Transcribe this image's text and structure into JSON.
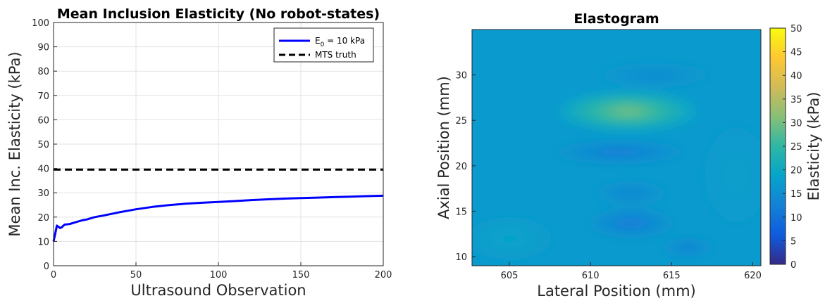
{
  "chart_data": [
    {
      "type": "line",
      "title": "Mean Inclusion Elasticity (No robot-states)",
      "xlabel": "Ultrasound Observation",
      "ylabel": "Mean Inc. Elasticity (kPa)",
      "xlim": [
        0,
        200
      ],
      "ylim": [
        0,
        100
      ],
      "xticks": [
        "0",
        "50",
        "100",
        "150",
        "200"
      ],
      "yticks": [
        "0",
        "10",
        "20",
        "30",
        "40",
        "50",
        "60",
        "70",
        "80",
        "90",
        "100"
      ],
      "grid": true,
      "legend_position": "top-right",
      "series": [
        {
          "name_main": "E",
          "name_sub": "0",
          "name_rest": " = 10 kPa",
          "color": "#0000ff",
          "style": "solid",
          "x": [
            0,
            1,
            2,
            3,
            4,
            5,
            6,
            7,
            8,
            10,
            12,
            15,
            18,
            20,
            25,
            30,
            35,
            40,
            45,
            50,
            60,
            70,
            80,
            90,
            100,
            110,
            120,
            130,
            140,
            150,
            160,
            170,
            180,
            190,
            200
          ],
          "y": [
            10,
            13,
            16.5,
            16,
            15.5,
            15.8,
            16.5,
            17,
            17,
            17.2,
            17.6,
            18.2,
            18.8,
            19,
            20,
            20.6,
            21.3,
            22,
            22.6,
            23.2,
            24.2,
            24.9,
            25.5,
            25.9,
            26.2,
            26.6,
            27.0,
            27.3,
            27.6,
            27.8,
            28.0,
            28.2,
            28.4,
            28.6,
            28.8
          ]
        },
        {
          "name": "MTS truth",
          "color": "#000000",
          "style": "dashed",
          "x": [
            0,
            200
          ],
          "y": [
            39.5,
            39.5
          ]
        }
      ]
    },
    {
      "type": "heatmap",
      "title": "Elastogram",
      "xlabel": "Lateral Position (mm)",
      "ylabel": "Axial Position (mm)",
      "xlim": [
        602.7,
        620.5
      ],
      "ylim": [
        9,
        35
      ],
      "xticks": [
        "605",
        "610",
        "615",
        "620"
      ],
      "yticks": [
        "10",
        "15",
        "20",
        "25",
        "30"
      ],
      "colorbar": {
        "label": "Elasticity (kPa)",
        "range": [
          0,
          50
        ],
        "ticks": [
          "0",
          "5",
          "10",
          "15",
          "20",
          "25",
          "30",
          "35",
          "40",
          "45",
          "50"
        ],
        "colormap": "parula"
      },
      "background_kpa": 17,
      "features": [
        {
          "cx": 612.3,
          "cy": 26.0,
          "rx": 3.3,
          "ry": 1.7,
          "peak_kpa": 32
        },
        {
          "cx": 611.8,
          "cy": 21.5,
          "rx": 3.0,
          "ry": 1.0,
          "peak_kpa": 11
        },
        {
          "cx": 612.5,
          "cy": 13.7,
          "rx": 2.0,
          "ry": 1.3,
          "peak_kpa": 11
        },
        {
          "cx": 612.5,
          "cy": 17.0,
          "rx": 1.6,
          "ry": 1.0,
          "peak_kpa": 13
        },
        {
          "cx": 616.0,
          "cy": 11.0,
          "rx": 1.2,
          "ry": 0.8,
          "peak_kpa": 12
        },
        {
          "cx": 614.0,
          "cy": 30.0,
          "rx": 2.5,
          "ry": 1.0,
          "peak_kpa": 14
        },
        {
          "cx": 605.0,
          "cy": 12.0,
          "rx": 2.0,
          "ry": 1.8,
          "peak_kpa": 19
        },
        {
          "cx": 619.0,
          "cy": 19.0,
          "rx": 1.5,
          "ry": 4.0,
          "peak_kpa": 18
        }
      ]
    }
  ]
}
